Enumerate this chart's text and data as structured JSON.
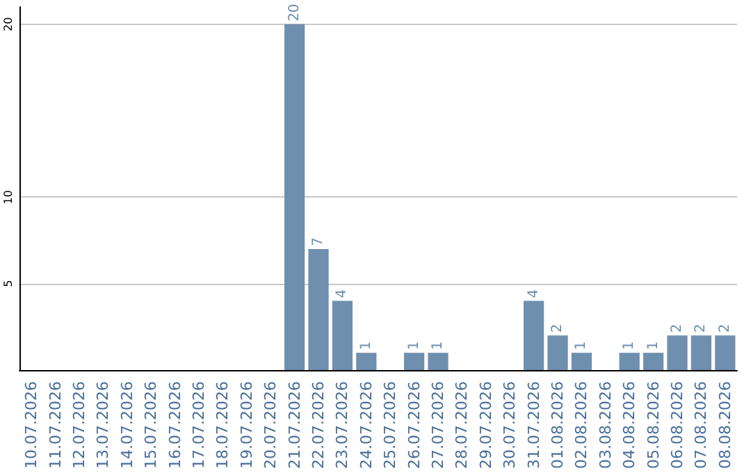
{
  "chart_data": {
    "type": "bar",
    "categories": [
      "10.07.2026",
      "11.07.2026",
      "12.07.2026",
      "13.07.2026",
      "14.07.2026",
      "15.07.2026",
      "16.07.2026",
      "17.07.2026",
      "18.07.2026",
      "19.07.2026",
      "20.07.2026",
      "21.07.2026",
      "22.07.2026",
      "23.07.2026",
      "24.07.2026",
      "25.07.2026",
      "26.07.2026",
      "27.07.2026",
      "28.07.2026",
      "29.07.2026",
      "30.07.2026",
      "31.07.2026",
      "01.08.2026",
      "02.08.2026",
      "03.08.2026",
      "04.08.2026",
      "05.08.2026",
      "06.08.2026",
      "07.08.2026",
      "08.08.2026"
    ],
    "values": [
      0,
      0,
      0,
      0,
      0,
      0,
      0,
      0,
      0,
      0,
      0,
      20,
      7,
      4,
      1,
      0,
      1,
      1,
      0,
      0,
      0,
      4,
      2,
      1,
      0,
      1,
      1,
      2,
      2,
      2
    ],
    "value_labels": [
      null,
      null,
      null,
      null,
      null,
      null,
      null,
      null,
      null,
      null,
      null,
      "20",
      "7",
      "4",
      "1",
      null,
      "1",
      "1",
      null,
      null,
      null,
      "4",
      "2",
      "1",
      null,
      "1",
      "1",
      "2",
      "2",
      "2"
    ],
    "color": "#6f8faf",
    "ylim": [
      0,
      21
    ],
    "yticks": [
      5,
      10,
      20
    ],
    "grid": "y"
  }
}
